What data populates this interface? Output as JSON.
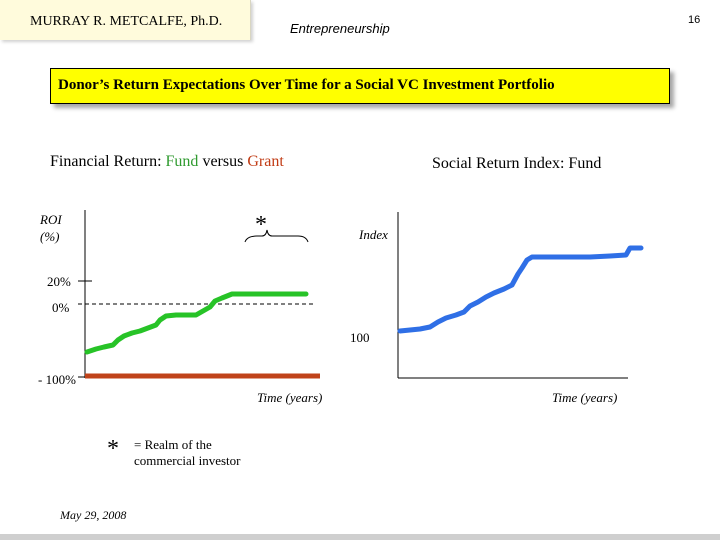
{
  "header": {
    "author": "MURRAY R. METCALFE, Ph.D.",
    "course": "Entrepreneurship",
    "page_number": "16"
  },
  "title": "Donor’s Return Expectations Over Time for a Social VC Investment Portfolio",
  "left_chart": {
    "heading_prefix": "Financial Return: ",
    "heading_fund": "Fund",
    "heading_mid": " versus ",
    "heading_grant": "Grant",
    "y_axis_label_line1": "ROI",
    "y_axis_label_line2": "(%)",
    "tick_top": "20%",
    "tick_mid": "0%",
    "tick_bottom": "- 100%",
    "x_axis_label": "Time (years)",
    "asterisk": "*",
    "colors": {
      "fund": "#27c327",
      "grant": "#c0431a",
      "axis": "#000000"
    }
  },
  "right_chart": {
    "heading": "Social Return Index: Fund",
    "y_axis_label": "Index",
    "tick": "100",
    "x_axis_label": "Time (years)",
    "colors": {
      "fund": "#2f6fe6"
    }
  },
  "note": {
    "asterisk": "*",
    "line1": "= Realm of the",
    "line2": "commercial investor"
  },
  "footer": {
    "date": "May 29, 2008"
  }
}
